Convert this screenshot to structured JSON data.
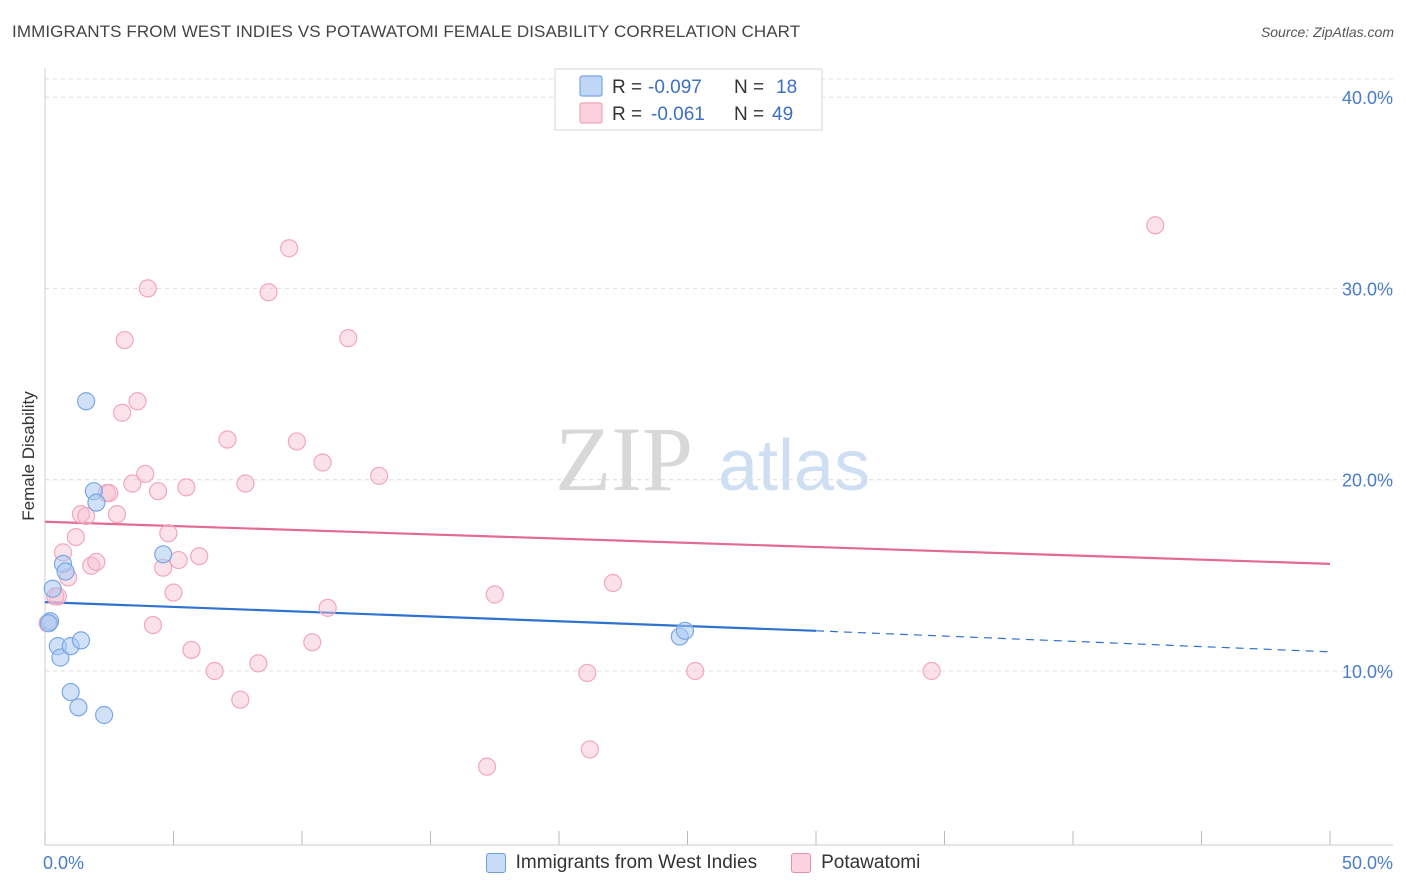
{
  "header": {
    "title": "IMMIGRANTS FROM WEST INDIES VS POTAWATOMI FEMALE DISABILITY CORRELATION CHART",
    "source": "Source: ZipAtlas.com"
  },
  "watermark": {
    "zip": "ZIP",
    "atlas": "atlas"
  },
  "legend": {
    "r_label": "R =",
    "n_label": "N =",
    "rows": [
      {
        "r": "-0.097",
        "n": "18",
        "color": "#a9c7f0"
      },
      {
        "r": "-0.061",
        "n": "49",
        "color": "#f6bfd0"
      }
    ]
  },
  "bottom_legend": [
    {
      "label": "Immigrants from West Indies",
      "fill": "#c7dcf7",
      "stroke": "#6d9ee0"
    },
    {
      "label": "Potawatomi",
      "fill": "#fbd3df",
      "stroke": "#e58fab"
    }
  ],
  "chart_data": {
    "type": "scatter",
    "title": "IMMIGRANTS FROM WEST INDIES VS POTAWATOMI FEMALE DISABILITY CORRELATION CHART",
    "xlabel": "",
    "ylabel": "Female Disability",
    "xlim": [
      0,
      50
    ],
    "ylim": [
      0,
      40
    ],
    "x_tick_labels": [
      "0.0%",
      "50.0%"
    ],
    "y_ticks": [
      10,
      20,
      30,
      40
    ],
    "y_tick_labels": [
      "10.0%",
      "20.0%",
      "30.0%",
      "40.0%"
    ],
    "series": [
      {
        "name": "Immigrants from West Indies",
        "color": "#7aa8e6",
        "line_color": "#2f73d0",
        "trend": {
          "x0": 0,
          "y0": 13.6,
          "x1": 30,
          "y1": 12.1,
          "dash_to_x": 50,
          "dash_to_y": 11.0
        },
        "points": [
          [
            0.2,
            12.6
          ],
          [
            0.3,
            14.3
          ],
          [
            0.5,
            11.3
          ],
          [
            0.6,
            10.7
          ],
          [
            0.7,
            15.6
          ],
          [
            0.8,
            15.2
          ],
          [
            1.0,
            11.3
          ],
          [
            1.0,
            8.9
          ],
          [
            1.3,
            8.1
          ],
          [
            1.4,
            11.6
          ],
          [
            1.6,
            24.1
          ],
          [
            1.9,
            19.4
          ],
          [
            2.0,
            18.8
          ],
          [
            2.3,
            7.7
          ],
          [
            4.6,
            16.1
          ],
          [
            24.7,
            11.8
          ],
          [
            24.9,
            12.1
          ],
          [
            0.15,
            12.5
          ]
        ]
      },
      {
        "name": "Potawatomi",
        "color": "#f2a6bf",
        "line_color": "#e36a94",
        "trend": {
          "x0": 0,
          "y0": 17.8,
          "x1": 50,
          "y1": 15.6
        },
        "points": [
          [
            0.1,
            12.5
          ],
          [
            0.5,
            13.9
          ],
          [
            0.7,
            16.2
          ],
          [
            0.9,
            14.9
          ],
          [
            1.2,
            17.0
          ],
          [
            1.4,
            18.2
          ],
          [
            1.6,
            18.1
          ],
          [
            1.8,
            15.5
          ],
          [
            2.0,
            15.7
          ],
          [
            2.4,
            19.3
          ],
          [
            2.8,
            18.2
          ],
          [
            3.1,
            27.3
          ],
          [
            3.0,
            23.5
          ],
          [
            3.4,
            19.8
          ],
          [
            3.6,
            24.1
          ],
          [
            3.9,
            20.3
          ],
          [
            4.0,
            30.0
          ],
          [
            4.2,
            12.4
          ],
          [
            4.4,
            19.4
          ],
          [
            4.6,
            15.4
          ],
          [
            4.8,
            17.2
          ],
          [
            5.0,
            14.1
          ],
          [
            5.2,
            15.8
          ],
          [
            5.5,
            19.6
          ],
          [
            5.7,
            11.1
          ],
          [
            6.0,
            16.0
          ],
          [
            6.6,
            10.0
          ],
          [
            7.1,
            22.1
          ],
          [
            7.6,
            8.5
          ],
          [
            7.8,
            19.8
          ],
          [
            8.3,
            10.4
          ],
          [
            8.7,
            29.8
          ],
          [
            9.5,
            32.1
          ],
          [
            10.4,
            11.5
          ],
          [
            9.8,
            22.0
          ],
          [
            10.8,
            20.9
          ],
          [
            11.0,
            13.3
          ],
          [
            11.8,
            27.4
          ],
          [
            13.0,
            20.2
          ],
          [
            17.5,
            14.0
          ],
          [
            17.2,
            5.0
          ],
          [
            21.1,
            9.9
          ],
          [
            21.2,
            5.9
          ],
          [
            22.1,
            14.6
          ],
          [
            25.3,
            10.0
          ],
          [
            34.5,
            10.0
          ],
          [
            43.2,
            33.3
          ],
          [
            2.5,
            19.3
          ],
          [
            0.4,
            13.9
          ]
        ]
      }
    ]
  }
}
